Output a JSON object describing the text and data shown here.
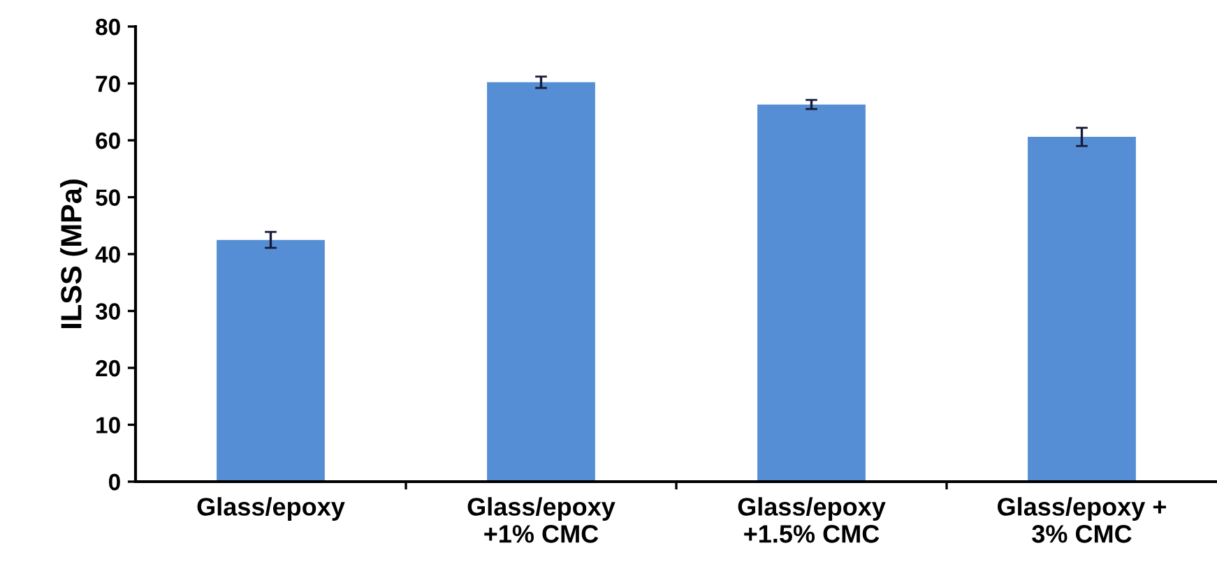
{
  "chart_data": {
    "type": "bar",
    "ylabel": "ILSS (MPa)",
    "categories": [
      "Glass/epoxy",
      "Glass/epoxy\n+1% CMC",
      "Glass/epoxy\n+1.5% CMC",
      "Glass/epoxy +\n3% CMC"
    ],
    "values": [
      42.5,
      70.2,
      66.3,
      60.6
    ],
    "errors": [
      1.4,
      1.0,
      0.8,
      1.6
    ],
    "color": "#558ed5",
    "ylim": [
      0,
      80
    ],
    "yticks": [
      0,
      10,
      20,
      30,
      40,
      50,
      60,
      70,
      80
    ],
    "grid": false
  }
}
